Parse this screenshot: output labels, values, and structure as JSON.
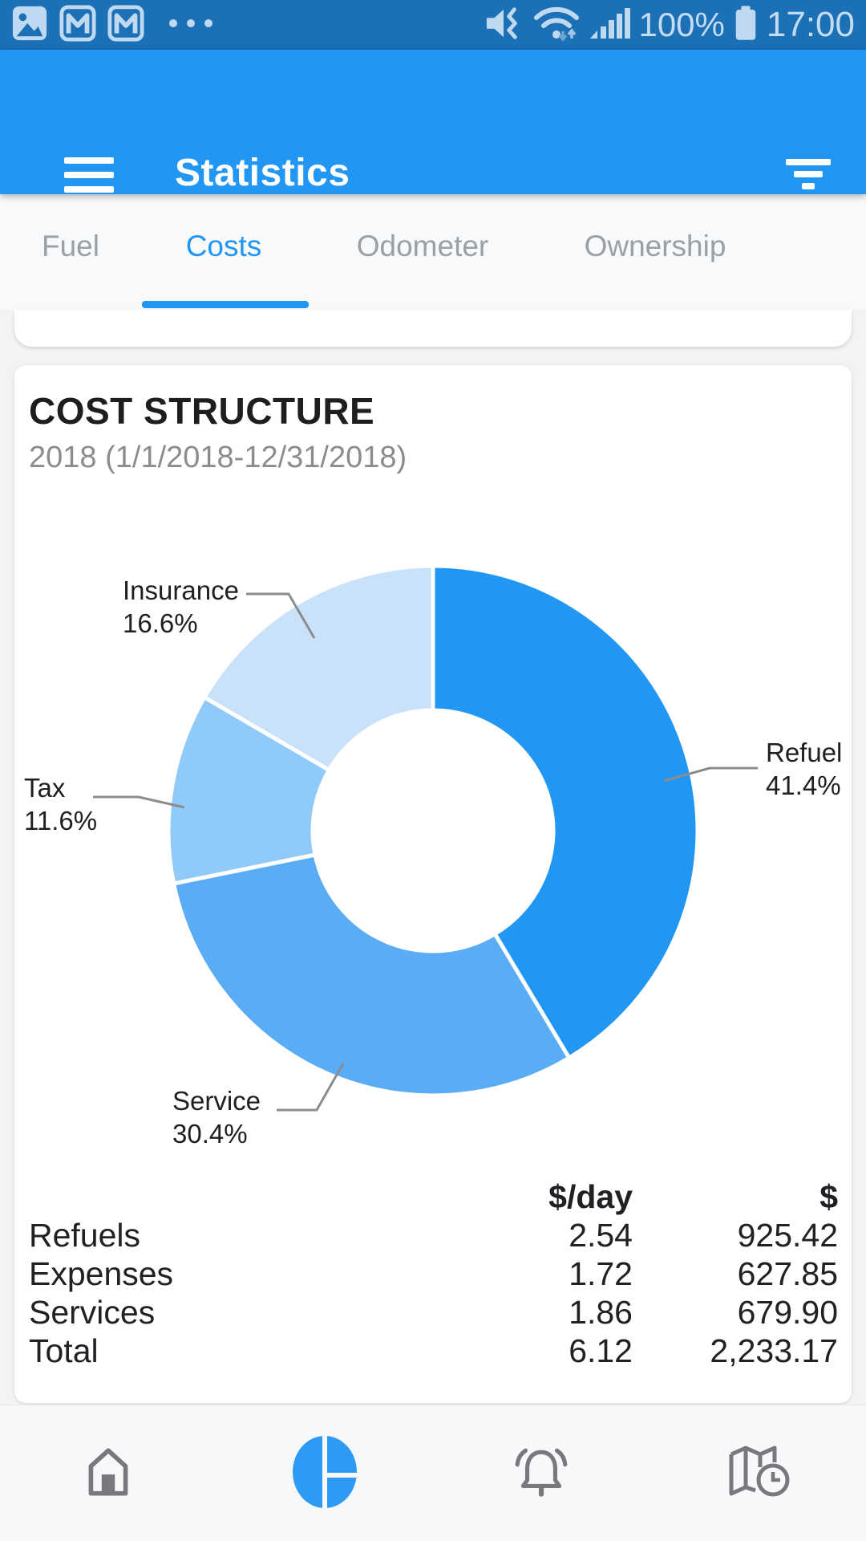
{
  "colors": {
    "status_bar_bg": "#1C70B5",
    "app_bar_bg": "#2196F3",
    "accent": "#2196F3",
    "tab_inactive": "#9AA0A6",
    "leader_line": "#8A8D90",
    "nav_icon_gray": "#77797C"
  },
  "status_bar": {
    "time": "17:00",
    "battery": "100%",
    "left_icons": [
      "photo-icon",
      "gmail-icon",
      "gmail-icon",
      "more-dots-icon"
    ],
    "right_icons": [
      "mute-vibrate-icon",
      "wifi-icon",
      "signal-icon",
      "battery-icon"
    ]
  },
  "app_bar": {
    "title": "Statistics",
    "icons": [
      "menu-icon",
      "filter-icon"
    ]
  },
  "tabs": [
    {
      "label": "Fuel",
      "selected": false
    },
    {
      "label": "Costs",
      "selected": true
    },
    {
      "label": "Odometer",
      "selected": false
    },
    {
      "label": "Ownership",
      "selected": false
    }
  ],
  "chart_data": {
    "type": "pie",
    "donut": true,
    "title": "COST STRUCTURE",
    "subtitle": "2018 (1/1/2018-12/31/2018)",
    "start_angle_deg": 0,
    "direction": "clockwise",
    "slices": [
      {
        "label": "Refuel",
        "value_pct": 41.4,
        "pct_label": "41.4%",
        "color": "#2196F3"
      },
      {
        "label": "Service",
        "value_pct": 30.4,
        "pct_label": "30.4%",
        "color": "#5AACF5"
      },
      {
        "label": "Tax",
        "value_pct": 11.6,
        "pct_label": "11.6%",
        "color": "#90CAF9"
      },
      {
        "label": "Insurance",
        "value_pct": 16.6,
        "pct_label": "16.6%",
        "color": "#C9E2FA"
      }
    ],
    "table": {
      "headers": [
        "$/day",
        "$"
      ],
      "rows": [
        {
          "label": "Refuels",
          "per_day": "2.54",
          "total": "925.42"
        },
        {
          "label": "Expenses",
          "per_day": "1.72",
          "total": "627.85"
        },
        {
          "label": "Services",
          "per_day": "1.86",
          "total": "679.90"
        },
        {
          "label": "Total",
          "per_day": "6.12",
          "total": "2,233.17"
        }
      ]
    }
  },
  "bottom_nav": {
    "items": [
      {
        "name": "home",
        "icon": "home-icon",
        "selected": false
      },
      {
        "name": "statistics",
        "icon": "pie-chart-icon",
        "selected": true
      },
      {
        "name": "reminders",
        "icon": "bell-icon",
        "selected": false
      },
      {
        "name": "map",
        "icon": "map-clock-icon",
        "selected": false
      }
    ]
  }
}
